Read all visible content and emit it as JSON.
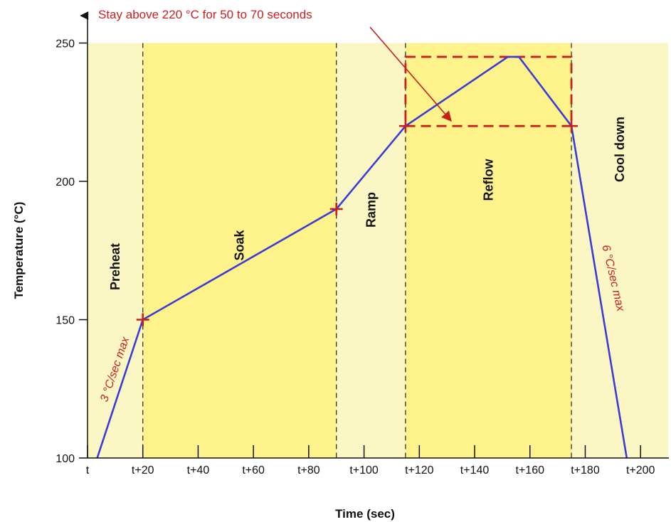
{
  "chart_data": {
    "type": "line",
    "title": "",
    "xlabel": "Time (sec)",
    "ylabel": "Temperature (°C)",
    "xlim": [
      0,
      210
    ],
    "ylim": [
      100,
      250
    ],
    "x_ticks": [
      0,
      20,
      40,
      60,
      80,
      100,
      120,
      140,
      160,
      180,
      200
    ],
    "x_tick_labels": [
      "t",
      "t+20",
      "t+40",
      "t+60",
      "t+80",
      "t+100",
      "t+120",
      "t+140",
      "t+160",
      "t+180",
      "t+200"
    ],
    "y_ticks": [
      100,
      150,
      200,
      250
    ],
    "y_tick_labels": [
      "100",
      "150",
      "200",
      "250"
    ],
    "grid": false,
    "colors": {
      "profile_line": "#3b3bd6",
      "annotation": "#c8201e",
      "zone_light": "#fbf7c4",
      "zone_bright": "#fdf38a"
    },
    "series": [
      {
        "x": [
          3.5,
          20,
          90,
          115,
          152,
          156,
          175,
          195
        ],
        "y": [
          100,
          150,
          190,
          220,
          245,
          245,
          220,
          100
        ]
      }
    ],
    "markers": [
      {
        "x": 20,
        "y": 150
      },
      {
        "x": 90,
        "y": 190
      },
      {
        "x": 115,
        "y": 220
      },
      {
        "x": 175,
        "y": 220
      }
    ],
    "phases": [
      {
        "label": "Preheat",
        "x_start": 0,
        "x_end": 20,
        "shade": "light"
      },
      {
        "label": "Soak",
        "x_start": 20,
        "x_end": 90,
        "shade": "bright"
      },
      {
        "label": "Ramp",
        "x_start": 90,
        "x_end": 115,
        "shade": "light"
      },
      {
        "label": "Reflow",
        "x_start": 115,
        "x_end": 175,
        "shade": "bright"
      },
      {
        "label": "Cool down",
        "x_start": 175,
        "x_end": 210,
        "shade": "light"
      }
    ],
    "phase_boundaries": [
      20,
      90,
      115,
      175
    ],
    "reflow_window": {
      "x_start": 115,
      "x_end": 175,
      "y_low": 220,
      "y_high": 245
    },
    "annotations": {
      "reflow_note": "Stay above 220 °C for 50 to 70 seconds",
      "heating_slope": "3 °C/sec max",
      "cooling_slope": "6 °C/sec max"
    }
  }
}
